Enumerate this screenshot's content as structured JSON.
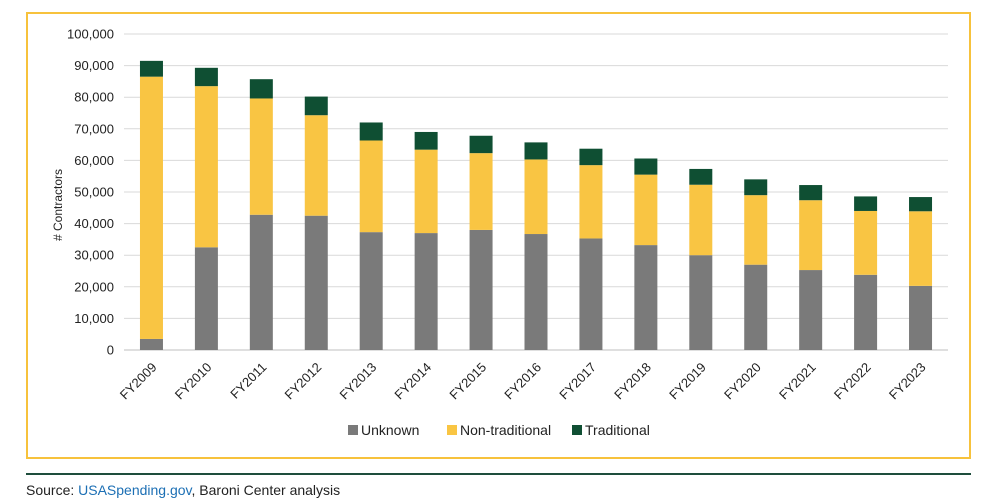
{
  "chart_data": {
    "type": "bar",
    "stacked": true,
    "categories": [
      "FY2009",
      "FY2010",
      "FY2011",
      "FY2012",
      "FY2013",
      "FY2014",
      "FY2015",
      "FY2016",
      "FY2017",
      "FY2018",
      "FY2019",
      "FY2020",
      "FY2021",
      "FY2022",
      "FY2023"
    ],
    "series": [
      {
        "name": "Unknown",
        "color": "#7a7a7a",
        "values": [
          3500,
          32500,
          42800,
          42500,
          37300,
          37000,
          38000,
          36700,
          35300,
          33200,
          30000,
          27000,
          25300,
          23800,
          20300
        ]
      },
      {
        "name": "Non-traditional",
        "color": "#f9c543",
        "values": [
          83000,
          51000,
          36800,
          31800,
          29000,
          26400,
          24300,
          23600,
          23200,
          22300,
          22300,
          22000,
          22100,
          20200,
          23600
        ]
      },
      {
        "name": "Traditional",
        "color": "#0f4f33",
        "values": [
          5000,
          5800,
          6100,
          5900,
          5700,
          5600,
          5500,
          5400,
          5200,
          5100,
          5000,
          5000,
          4800,
          4600,
          4500
        ]
      }
    ],
    "ylabel": "# Contractors",
    "xlabel": "",
    "ylim": [
      0,
      100000
    ],
    "yticks": [
      "0",
      "10,000",
      "20,000",
      "30,000",
      "40,000",
      "50,000",
      "60,000",
      "70,000",
      "80,000",
      "90,000",
      "100,000"
    ],
    "grid": true,
    "legend": "bottom"
  },
  "source": {
    "prefix": "Source: ",
    "link_text": "USASpending.gov",
    "suffix": ", Baroni Center analysis"
  }
}
